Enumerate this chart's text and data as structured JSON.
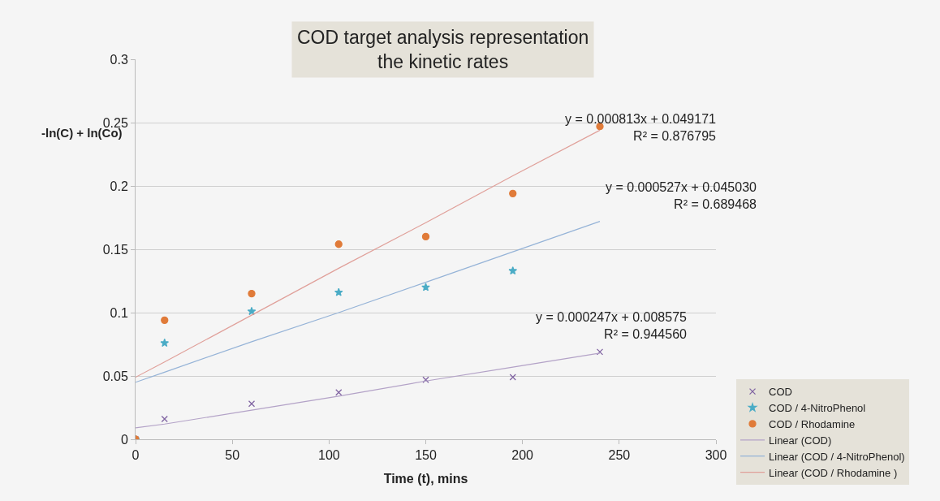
{
  "chart_data": {
    "type": "scatter",
    "title": "COD target analysis representation\nthe kinetic rates",
    "xlabel": "Time (t), mins",
    "ylabel": "-ln(C) + ln(Co)",
    "x": [
      0,
      15,
      60,
      105,
      150,
      195,
      240
    ],
    "series": [
      {
        "name": "COD",
        "color": "#8064a2",
        "marker": "cross",
        "values": [
          0,
          0.016,
          0.028,
          0.037,
          0.047,
          0.049,
          0.069
        ]
      },
      {
        "name": "COD / 4-NitroPhenol",
        "color": "#4bacc6",
        "marker": "star",
        "values": [
          0,
          0.076,
          0.101,
          0.116,
          0.12,
          0.133,
          null
        ]
      },
      {
        "name": "COD / Rhodamine",
        "color": "#e07b39",
        "marker": "circle",
        "values": [
          0,
          0.094,
          0.115,
          0.154,
          0.16,
          0.194,
          0.247
        ]
      },
      {
        "name": "Linear (COD)",
        "type": "line",
        "color": "#b3a2c7",
        "marker": "none",
        "values": [
          0.009,
          0.012,
          0.023,
          0.034,
          0.046,
          0.057,
          0.068
        ]
      },
      {
        "name": "Linear (COD / 4-NitroPhenol)",
        "type": "line",
        "color": "#95b3d7",
        "marker": "none",
        "values": [
          0.045,
          0.053,
          0.077,
          0.1,
          0.124,
          0.148,
          0.172
        ]
      },
      {
        "name": "Linear (COD / Rhodamine )",
        "type": "line",
        "color": "#e0a09a",
        "marker": "none",
        "values": [
          0.049,
          0.061,
          0.098,
          0.135,
          0.171,
          0.208,
          0.244
        ]
      }
    ],
    "annotations": [
      "y = 0.000813x + 0.049171\nR² = 0.876795",
      "y = 0.000527x + 0.045030\nR² = 0.689468",
      "y = 0.000247x + 0.008575\nR² = 0.944560"
    ],
    "xlim": [
      0,
      300
    ],
    "xticks": [
      0,
      50,
      100,
      150,
      200,
      250,
      300
    ],
    "ylim": [
      0,
      0.3
    ],
    "yticks": [
      0,
      0.05,
      0.1,
      0.15,
      0.2,
      0.25,
      0.3
    ],
    "grid": "y",
    "legend": "right"
  }
}
